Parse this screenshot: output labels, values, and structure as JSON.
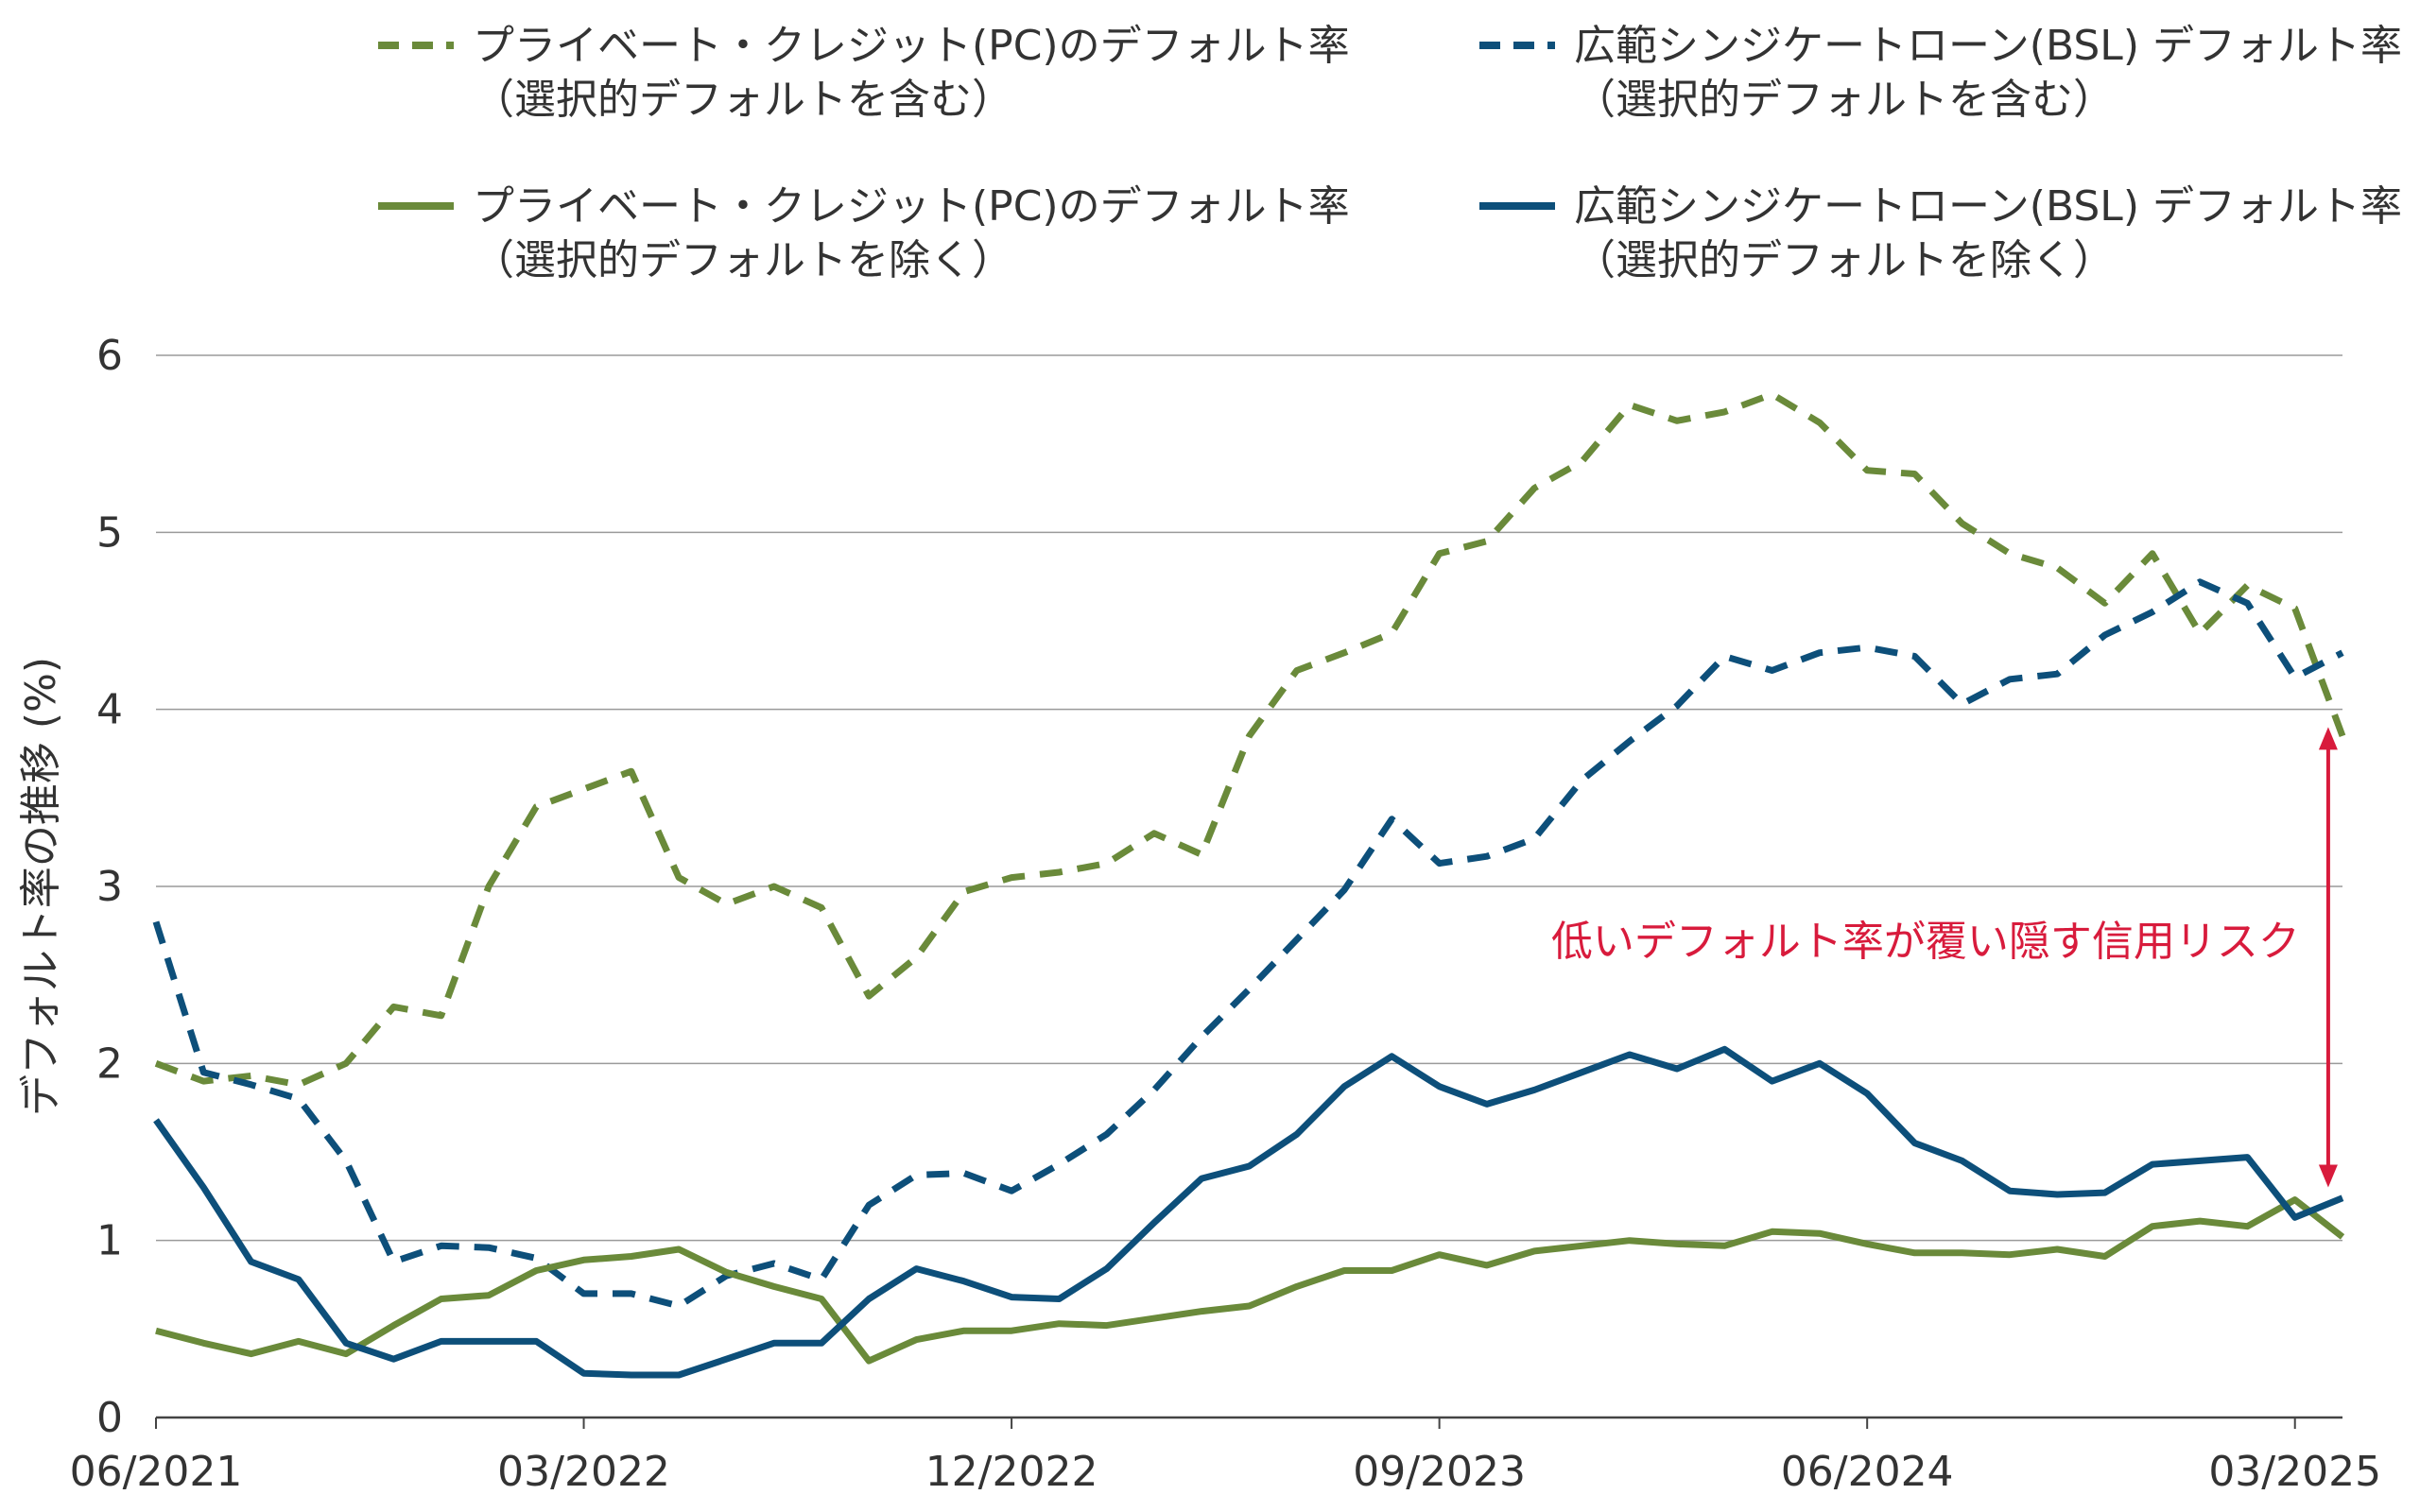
{
  "chart_data": {
    "type": "line",
    "ylabel": "デフォルト率の推移 (%)",
    "ylim": [
      0,
      6
    ],
    "yticks": [
      0,
      1,
      2,
      3,
      4,
      5,
      6
    ],
    "grid": true,
    "legend_position": "top",
    "x_tick_labels": [
      "06/2021",
      "03/2022",
      "12/2022",
      "09/2023",
      "06/2024",
      "03/2025"
    ],
    "x_tick_indices": [
      0,
      9,
      18,
      27,
      36,
      45
    ],
    "annotation": {
      "text": "低いデフォルト率が覆い隠す信用リスク",
      "color": "#d81b3c",
      "x_index": 45.7,
      "y_from": 3.9,
      "y_to": 1.3
    },
    "series": [
      {
        "name_line1": "プライベート・クレジット(PC)のデフォルト率",
        "name_line2": "（選択的デフォルトを含む）",
        "color": "#6a8a3a",
        "style": "dashed",
        "values": [
          2.0,
          1.9,
          1.93,
          1.88,
          2.0,
          2.32,
          2.27,
          3.0,
          3.45,
          3.55,
          3.65,
          3.05,
          2.9,
          3.0,
          2.88,
          2.38,
          2.6,
          2.97,
          3.05,
          3.08,
          3.13,
          3.3,
          3.18,
          3.85,
          4.22,
          4.32,
          4.43,
          4.88,
          4.95,
          5.25,
          5.4,
          5.72,
          5.63,
          5.68,
          5.78,
          5.62,
          5.35,
          5.33,
          5.05,
          4.88,
          4.8,
          4.6,
          4.88,
          4.43,
          4.7,
          4.57,
          3.85
        ]
      },
      {
        "name_line1": "広範シンジケートローン(BSL) デフォルト率",
        "name_line2": "（選択的デフォルトを含む）",
        "color": "#0d4f7a",
        "style": "dashed",
        "values": [
          2.8,
          1.95,
          1.88,
          1.8,
          1.45,
          0.88,
          0.97,
          0.96,
          0.9,
          0.7,
          0.7,
          0.63,
          0.8,
          0.87,
          0.78,
          1.2,
          1.37,
          1.38,
          1.28,
          1.43,
          1.6,
          1.85,
          2.15,
          2.42,
          2.7,
          2.98,
          3.38,
          3.13,
          3.17,
          3.27,
          3.6,
          3.82,
          4.02,
          4.3,
          4.22,
          4.32,
          4.35,
          4.3,
          4.03,
          4.17,
          4.2,
          4.42,
          4.55,
          4.72,
          4.6,
          4.18,
          4.32
        ]
      },
      {
        "name_line1": "プライベート・クレジット(PC)のデフォルト率",
        "name_line2": "（選択的デフォルトを除く）",
        "color": "#6a8a3a",
        "style": "solid",
        "values": [
          0.49,
          0.42,
          0.36,
          0.43,
          0.36,
          0.52,
          0.67,
          0.69,
          0.83,
          0.89,
          0.91,
          0.95,
          0.82,
          0.74,
          0.67,
          0.32,
          0.44,
          0.49,
          0.49,
          0.53,
          0.52,
          0.56,
          0.6,
          0.63,
          0.74,
          0.83,
          0.83,
          0.92,
          0.86,
          0.94,
          0.97,
          1.0,
          0.98,
          0.97,
          1.05,
          1.04,
          0.98,
          0.93,
          0.93,
          0.92,
          0.95,
          0.91,
          1.08,
          1.11,
          1.08,
          1.23,
          1.02
        ]
      },
      {
        "name_line1": "広範シンジケートローン(BSL) デフォルト率",
        "name_line2": "（選択的デフォルトを除く）",
        "color": "#0d4f7a",
        "style": "solid",
        "values": [
          1.68,
          1.3,
          0.88,
          0.78,
          0.42,
          0.33,
          0.43,
          0.43,
          0.43,
          0.25,
          0.24,
          0.24,
          0.33,
          0.42,
          0.42,
          0.67,
          0.84,
          0.77,
          0.68,
          0.67,
          0.84,
          1.1,
          1.35,
          1.42,
          1.6,
          1.87,
          2.04,
          1.87,
          1.77,
          1.85,
          1.95,
          2.05,
          1.97,
          2.08,
          1.9,
          2.0,
          1.83,
          1.55,
          1.45,
          1.28,
          1.26,
          1.27,
          1.43,
          1.45,
          1.47,
          1.13,
          1.24
        ]
      }
    ]
  }
}
